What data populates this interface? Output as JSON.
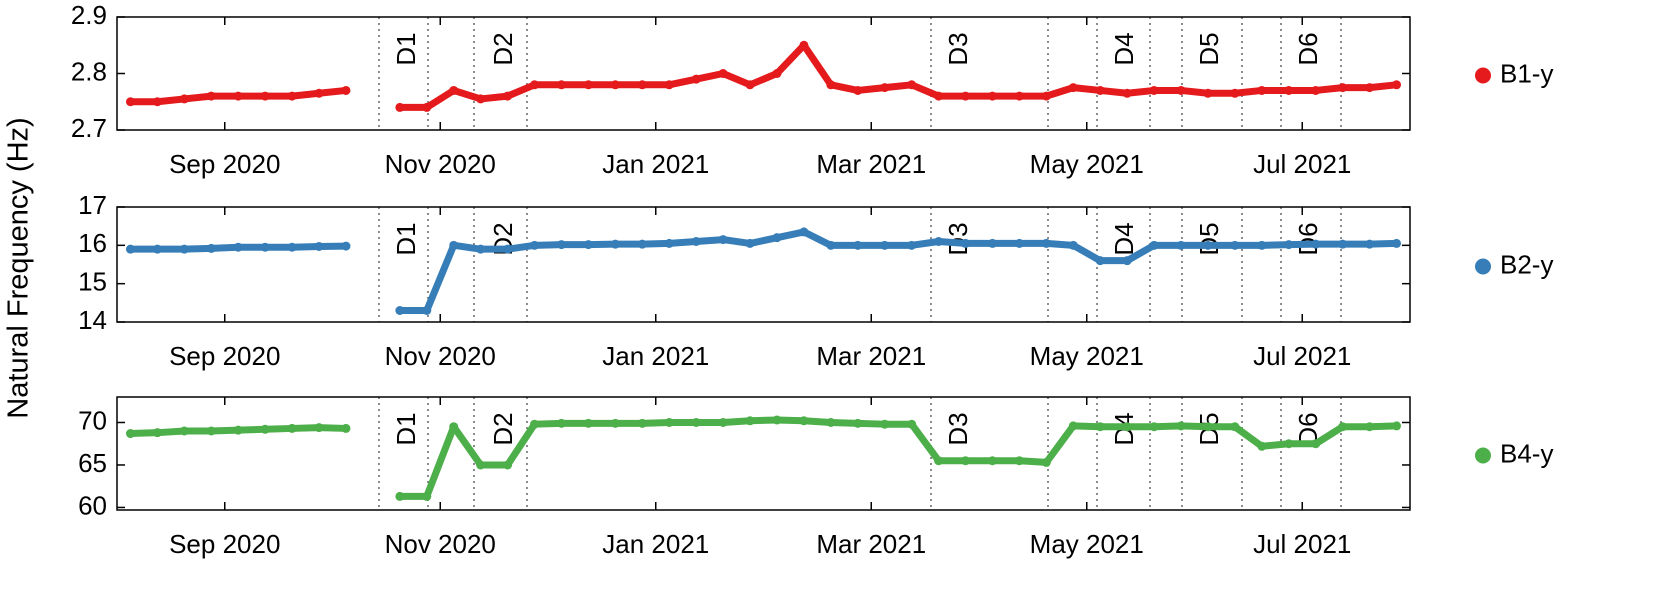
{
  "chart_data": [
    {
      "type": "scatter",
      "x": [
        "2020-08",
        "2020-08",
        "2020-08",
        "2020-08",
        "2020-09",
        "2020-09",
        "2020-09",
        "2020-09",
        "2020-10",
        "2020-10",
        "2020-10",
        "2020-10",
        "2020-11",
        "2020-11",
        "2020-11",
        "2020-11",
        "2020-12",
        "2020-12",
        "2020-12",
        "2020-12",
        "2021-01",
        "2021-01",
        "2021-01",
        "2021-01",
        "2021-02",
        "2021-02",
        "2021-02",
        "2021-02",
        "2021-03",
        "2021-03",
        "2021-03",
        "2021-03",
        "2021-04",
        "2021-04",
        "2021-04",
        "2021-04",
        "2021-05",
        "2021-05",
        "2021-05",
        "2021-05",
        "2021-06",
        "2021-06",
        "2021-06",
        "2021-06",
        "2021-07",
        "2021-07",
        "2021-07",
        "2021-07"
      ],
      "series": [
        {
          "name": "B1-y",
          "color": "#e41a1c",
          "values": [
            2.75,
            2.75,
            2.755,
            2.76,
            2.76,
            2.76,
            2.76,
            2.765,
            2.77,
            null,
            2.74,
            2.74,
            2.77,
            2.755,
            2.76,
            2.78,
            2.78,
            2.78,
            2.78,
            2.78,
            2.78,
            2.79,
            2.8,
            2.78,
            2.8,
            2.85,
            2.78,
            2.77,
            2.775,
            2.78,
            2.76,
            2.76,
            2.76,
            2.76,
            2.76,
            2.775,
            2.77,
            2.765,
            2.77,
            2.77,
            2.765,
            2.765,
            2.77,
            2.77,
            2.77,
            2.775,
            2.775,
            2.78
          ]
        }
      ],
      "xlim": [
        "2020-08",
        "2021-08"
      ],
      "xticks": [
        {
          "value": "2020-09",
          "label": "Sep 2020"
        },
        {
          "value": "2020-11",
          "label": "Nov 2020"
        },
        {
          "value": "2021-01",
          "label": "Jan 2021"
        },
        {
          "value": "2021-03",
          "label": "Mar 2021"
        },
        {
          "value": "2021-05",
          "label": "May 2021"
        },
        {
          "value": "2021-07",
          "label": "Jul 2021"
        }
      ],
      "ylim": [
        2.7,
        2.9
      ],
      "yticks": [
        2.7,
        2.8,
        2.9
      ],
      "annotations": [
        "D1",
        "D2",
        "D3",
        "D4",
        "D5",
        "D6"
      ]
    },
    {
      "type": "scatter",
      "x": [
        "2020-08",
        "2020-08",
        "2020-08",
        "2020-08",
        "2020-09",
        "2020-09",
        "2020-09",
        "2020-09",
        "2020-10",
        "2020-10",
        "2020-10",
        "2020-10",
        "2020-11",
        "2020-11",
        "2020-11",
        "2020-11",
        "2020-12",
        "2020-12",
        "2020-12",
        "2020-12",
        "2021-01",
        "2021-01",
        "2021-01",
        "2021-01",
        "2021-02",
        "2021-02",
        "2021-02",
        "2021-02",
        "2021-03",
        "2021-03",
        "2021-03",
        "2021-03",
        "2021-04",
        "2021-04",
        "2021-04",
        "2021-04",
        "2021-05",
        "2021-05",
        "2021-05",
        "2021-05",
        "2021-06",
        "2021-06",
        "2021-06",
        "2021-06",
        "2021-07",
        "2021-07",
        "2021-07",
        "2021-07"
      ],
      "series": [
        {
          "name": "B2-y",
          "color": "#377eb8",
          "values": [
            15.9,
            15.9,
            15.9,
            15.92,
            15.95,
            15.95,
            15.95,
            15.97,
            15.98,
            null,
            14.3,
            14.3,
            16.0,
            15.9,
            15.9,
            16.0,
            16.02,
            16.02,
            16.03,
            16.03,
            16.05,
            16.1,
            16.15,
            16.05,
            16.2,
            16.35,
            16.0,
            16.0,
            16.0,
            16.0,
            16.1,
            16.05,
            16.05,
            16.05,
            16.05,
            16.0,
            15.6,
            15.6,
            16.0,
            16.0,
            16.0,
            16.0,
            16.0,
            16.02,
            16.03,
            16.03,
            16.03,
            16.05
          ]
        }
      ],
      "xlim": [
        "2020-08",
        "2021-08"
      ],
      "xticks": [
        {
          "value": "2020-09",
          "label": "Sep 2020"
        },
        {
          "value": "2020-11",
          "label": "Nov 2020"
        },
        {
          "value": "2021-01",
          "label": "Jan 2021"
        },
        {
          "value": "2021-03",
          "label": "Mar 2021"
        },
        {
          "value": "2021-05",
          "label": "May 2021"
        },
        {
          "value": "2021-07",
          "label": "Jul 2021"
        }
      ],
      "ylim": [
        14,
        17
      ],
      "yticks": [
        14,
        15,
        16,
        17
      ],
      "ylabel": "Natural Frequency (Hz)",
      "annotations": [
        "D1",
        "D2",
        "D3",
        "D4",
        "D5",
        "D6"
      ]
    },
    {
      "type": "scatter",
      "x": [
        "2020-08",
        "2020-08",
        "2020-08",
        "2020-08",
        "2020-09",
        "2020-09",
        "2020-09",
        "2020-09",
        "2020-10",
        "2020-10",
        "2020-10",
        "2020-10",
        "2020-11",
        "2020-11",
        "2020-11",
        "2020-11",
        "2020-12",
        "2020-12",
        "2020-12",
        "2020-12",
        "2021-01",
        "2021-01",
        "2021-01",
        "2021-01",
        "2021-02",
        "2021-02",
        "2021-02",
        "2021-02",
        "2021-03",
        "2021-03",
        "2021-03",
        "2021-03",
        "2021-04",
        "2021-04",
        "2021-04",
        "2021-04",
        "2021-05",
        "2021-05",
        "2021-05",
        "2021-05",
        "2021-06",
        "2021-06",
        "2021-06",
        "2021-06",
        "2021-07",
        "2021-07",
        "2021-07",
        "2021-07"
      ],
      "series": [
        {
          "name": "B4-y",
          "color": "#4daf4a",
          "values": [
            68.7,
            68.8,
            69,
            69,
            69.1,
            69.2,
            69.3,
            69.4,
            69.3,
            null,
            61.3,
            61.3,
            69.5,
            65,
            65,
            69.8,
            69.9,
            69.9,
            69.9,
            69.9,
            70,
            70,
            70,
            70.2,
            70.3,
            70.2,
            70,
            69.9,
            69.8,
            69.8,
            65.5,
            65.5,
            65.5,
            65.5,
            65.3,
            69.6,
            69.5,
            69.5,
            69.5,
            69.6,
            69.5,
            69.5,
            67.2,
            67.5,
            67.5,
            69.5,
            69.5,
            69.6
          ]
        }
      ],
      "xlim": [
        "2020-08",
        "2021-08"
      ],
      "xticks": [
        {
          "value": "2020-09",
          "label": "Sep 2020"
        },
        {
          "value": "2020-11",
          "label": "Nov 2020"
        },
        {
          "value": "2021-01",
          "label": "Jan 2021"
        },
        {
          "value": "2021-03",
          "label": "Mar 2021"
        },
        {
          "value": "2021-05",
          "label": "May 2021"
        },
        {
          "value": "2021-07",
          "label": "Jul 2021"
        }
      ],
      "ylim": [
        59.7,
        73
      ],
      "yticks": [
        60,
        65,
        70
      ],
      "annotations": [
        "D1",
        "D2",
        "D3",
        "D4",
        "D5",
        "D6"
      ]
    }
  ]
}
